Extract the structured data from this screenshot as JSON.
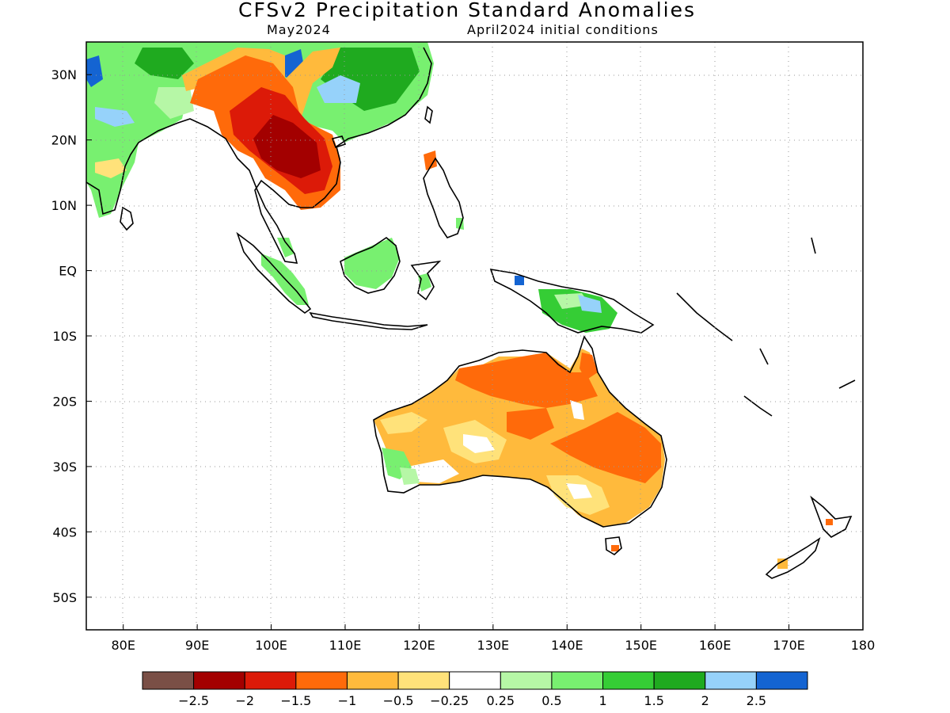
{
  "title": "CFSv2 Precipitation Standard Anomalies",
  "subtitle_left": "May2024",
  "subtitle_right": "April2024 initial conditions",
  "map": {
    "lon_range": [
      75,
      180
    ],
    "lat_range": [
      -55,
      35
    ],
    "lon_ticks": [
      {
        "value": 80,
        "label": "80E"
      },
      {
        "value": 90,
        "label": "90E"
      },
      {
        "value": 100,
        "label": "100E"
      },
      {
        "value": 110,
        "label": "110E"
      },
      {
        "value": 120,
        "label": "120E"
      },
      {
        "value": 130,
        "label": "130E"
      },
      {
        "value": 140,
        "label": "140E"
      },
      {
        "value": 150,
        "label": "150E"
      },
      {
        "value": 160,
        "label": "160E"
      },
      {
        "value": 170,
        "label": "170E"
      },
      {
        "value": 180,
        "label": "180"
      }
    ],
    "lat_ticks": [
      {
        "value": 30,
        "label": "30N"
      },
      {
        "value": 20,
        "label": "20N"
      },
      {
        "value": 10,
        "label": "10N"
      },
      {
        "value": 0,
        "label": "EQ"
      },
      {
        "value": -10,
        "label": "10S"
      },
      {
        "value": -20,
        "label": "20S"
      },
      {
        "value": -30,
        "label": "30S"
      },
      {
        "value": -40,
        "label": "40S"
      },
      {
        "value": -50,
        "label": "50S"
      }
    ],
    "grid": "dotted"
  },
  "colorbar": {
    "colors": [
      "#7a4f46",
      "#a30000",
      "#dc1a08",
      "#ff6a0a",
      "#ffba3c",
      "#ffe27a",
      "#ffffff",
      "#b6f7a6",
      "#78f070",
      "#35cd35",
      "#1faa1f",
      "#96d2fa",
      "#1464d2"
    ],
    "labels": [
      "-2.5",
      "-2",
      "-1.5",
      "-1",
      "-0.5",
      "-0.25",
      "0.25",
      "0.5",
      "1",
      "1.5",
      "2",
      "2.5"
    ]
  },
  "anomaly_regions": [
    {
      "region": "India / Tibet",
      "level": "1",
      "color": "#78f070"
    },
    {
      "region": "Tibetan Plateau",
      "level": "2",
      "color": "#1faa1f"
    },
    {
      "region": "West India",
      "level": "2.5",
      "color": "#1464d2"
    },
    {
      "region": "Tibet east",
      "level": "2.5",
      "color": "#1464d2"
    },
    {
      "region": "South China",
      "level": "2",
      "color": "#96d2fa"
    },
    {
      "region": "Himalaya band",
      "level": "-1",
      "color": "#ff6a0a"
    },
    {
      "region": "Mainland Southeast Asia",
      "level": "-1.5",
      "color": "#dc1a08"
    },
    {
      "region": "Thailand / Laos",
      "level": "-2",
      "color": "#a30000"
    },
    {
      "region": "Borneo",
      "level": "1",
      "color": "#78f070"
    },
    {
      "region": "Sumatra",
      "level": "1",
      "color": "#78f070"
    },
    {
      "region": "New Guinea",
      "level": "1.5",
      "color": "#35cd35"
    },
    {
      "region": "New Guinea north",
      "level": "2",
      "color": "#96d2fa"
    },
    {
      "region": "Australia",
      "level": "-0.5",
      "color": "#ffba3c"
    },
    {
      "region": "Northern Australia",
      "level": "-1",
      "color": "#ff6a0a"
    },
    {
      "region": "Eastern Australia",
      "level": "-1",
      "color": "#ff6a0a"
    },
    {
      "region": "Southwest Australia",
      "level": "0.5",
      "color": "#78f070"
    }
  ]
}
